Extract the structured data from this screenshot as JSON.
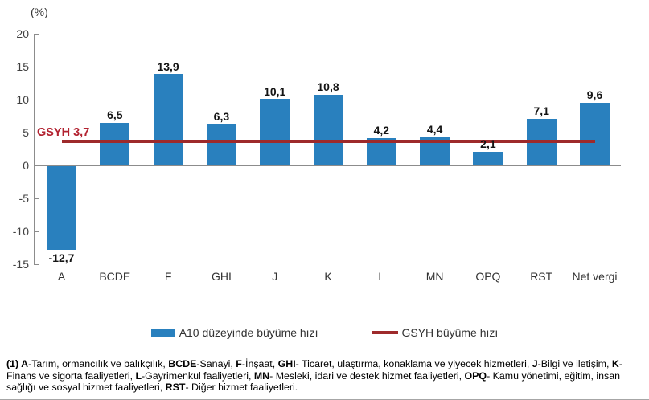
{
  "chart_data": {
    "type": "bar",
    "title": "",
    "unit_label": "(%)",
    "categories": [
      "A",
      "BCDE",
      "F",
      "GHI",
      "J",
      "K",
      "L",
      "MN",
      "OPQ",
      "RST",
      "Net vergi"
    ],
    "values": [
      -12.7,
      6.5,
      13.9,
      6.3,
      10.1,
      10.8,
      4.2,
      4.4,
      2.1,
      7.1,
      9.6
    ],
    "value_labels": [
      "-12,7",
      "6,5",
      "13,9",
      "6,3",
      "10,1",
      "10,8",
      "4,2",
      "4,4",
      "2,1",
      "7,1",
      "9,6"
    ],
    "series": [
      {
        "name": "A10 düzeyinde büyüme hızı",
        "type": "bar",
        "values": [
          -12.7,
          6.5,
          13.9,
          6.3,
          10.1,
          10.8,
          4.2,
          4.4,
          2.1,
          7.1,
          9.6
        ]
      },
      {
        "name": "GSYH büyüme hızı",
        "type": "line",
        "value": 3.7
      }
    ],
    "reference_line": {
      "value": 3.7,
      "label": "GSYH 3,7"
    },
    "ylim": [
      -15,
      20
    ],
    "yticks": [
      20,
      15,
      10,
      5,
      0,
      -5,
      -10,
      -15
    ],
    "ytick_labels": [
      "20",
      "15",
      "10",
      "5",
      "0",
      "-5",
      "-10",
      "-15"
    ],
    "xlabel": "",
    "ylabel": "(%)",
    "grid": false,
    "legend_position": "bottom",
    "bar_color": "#2980be",
    "line_color": "#9e2a2b"
  },
  "legend": {
    "bar_label": "A10 düzeyinde büyüme hızı",
    "line_label": "GSYH büyüme hızı"
  },
  "annotation": {
    "gsyh_label": "GSYH 3,7"
  },
  "footnote": {
    "segments": [
      {
        "text": "(1) A",
        "bold": true
      },
      {
        "text": "-Tarım, ormancılık ve balıkçılık, ",
        "bold": false
      },
      {
        "text": "BCDE",
        "bold": true
      },
      {
        "text": "-Sanayi, ",
        "bold": false
      },
      {
        "text": "F",
        "bold": true
      },
      {
        "text": "-İnşaat, ",
        "bold": false
      },
      {
        "text": "GHI",
        "bold": true
      },
      {
        "text": "- Ticaret, ulaştırma, konaklama ve yiyecek hizmetleri, ",
        "bold": false
      },
      {
        "text": "J",
        "bold": true
      },
      {
        "text": "-Bilgi ve iletişim, ",
        "bold": false
      },
      {
        "text": "K",
        "bold": true
      },
      {
        "text": "-Finans ve sigorta faaliyetleri, ",
        "bold": false
      },
      {
        "text": "L",
        "bold": true
      },
      {
        "text": "-Gayrimenkul faaliyetleri, ",
        "bold": false
      },
      {
        "text": "MN",
        "bold": true
      },
      {
        "text": "- Mesleki, idari ve destek hizmet faaliyetleri, ",
        "bold": false
      },
      {
        "text": "OPQ",
        "bold": true
      },
      {
        "text": "- Kamu yönetimi, eğitim, insan sağlığı ve sosyal hizmet faaliyetleri, ",
        "bold": false
      },
      {
        "text": "RST",
        "bold": true
      },
      {
        "text": "- Diğer hizmet faaliyetleri.",
        "bold": false
      }
    ]
  }
}
